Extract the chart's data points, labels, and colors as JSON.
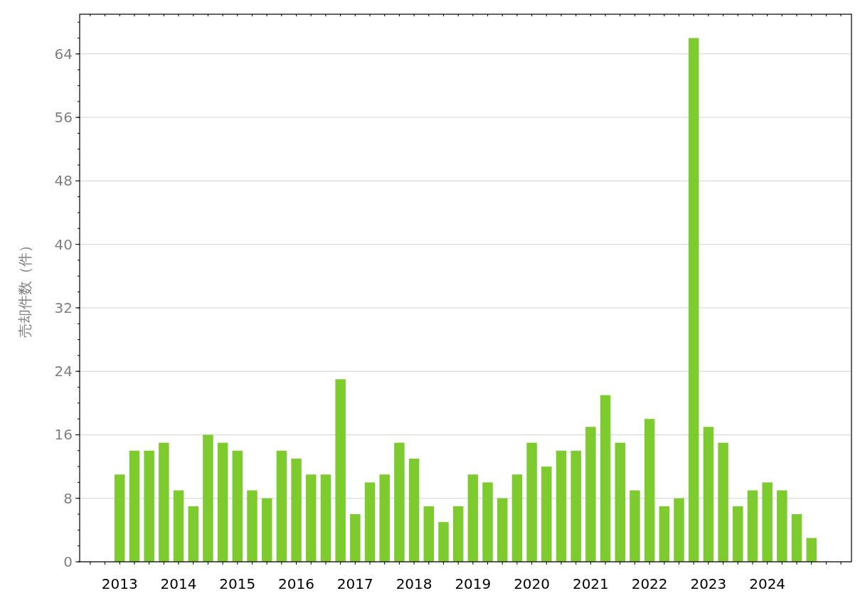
{
  "chart_data": {
    "type": "bar",
    "ylabel": "売却件数（件）",
    "categories": [
      "2013",
      null,
      null,
      null,
      "2014",
      null,
      null,
      null,
      "2015",
      null,
      null,
      null,
      "2016",
      null,
      null,
      null,
      "2017",
      null,
      null,
      null,
      "2018",
      null,
      null,
      null,
      "2019",
      null,
      null,
      null,
      "2020",
      null,
      null,
      null,
      "2021",
      null,
      null,
      null,
      "2022",
      null,
      null,
      null,
      "2023",
      null,
      null,
      null,
      "2024",
      null,
      null,
      null
    ],
    "values": [
      11,
      14,
      14,
      15,
      9,
      7,
      16,
      15,
      14,
      9,
      8,
      14,
      13,
      11,
      11,
      23,
      6,
      10,
      11,
      15,
      13,
      7,
      5,
      7,
      11,
      10,
      8,
      11,
      15,
      12,
      14,
      14,
      17,
      21,
      15,
      9,
      18,
      7,
      8,
      66,
      17,
      15,
      7,
      9,
      10,
      9,
      6,
      3
    ],
    "color": "#7ecb30",
    "ylim": [
      0,
      69
    ],
    "yticks": [
      0,
      8,
      16,
      24,
      32,
      40,
      48,
      56,
      64
    ],
    "grid": "y"
  }
}
